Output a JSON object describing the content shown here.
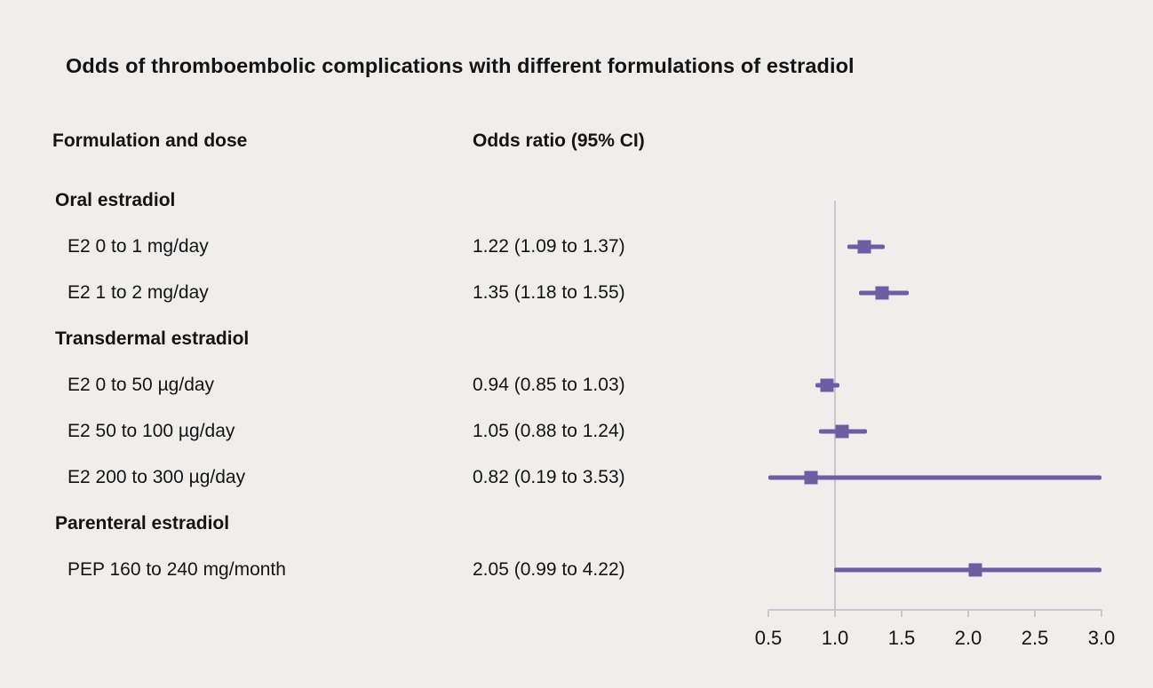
{
  "title": "Odds of thromboembolic complications with different formulations of estradiol",
  "columns": {
    "formulation": "Formulation and dose",
    "odds_ratio": "Odds ratio (95% CI)"
  },
  "chart_data": {
    "type": "forest",
    "title": "Odds of thromboembolic complications with different formulations of estradiol",
    "axis": {
      "min": 0.5,
      "max": 3.0,
      "ticks": [
        0.5,
        1.0,
        1.5,
        2.0,
        2.5,
        3.0
      ],
      "tick_labels": [
        "0.5",
        "1.0",
        "1.5",
        "2.0",
        "2.5",
        "3.0"
      ],
      "reference_line": 1.0
    },
    "colors": {
      "marker": "#6f5da4",
      "axis": "#c8c7cc",
      "background": "#efeeec",
      "text": "#141414"
    },
    "rows": [
      {
        "kind": "group",
        "label": "Oral estradiol"
      },
      {
        "kind": "item",
        "label": "E2 0 to 1 mg/day",
        "estimate_text": "1.22 (1.09 to 1.37)",
        "or": 1.22,
        "lo": 1.09,
        "hi": 1.37
      },
      {
        "kind": "item",
        "label": "E2 1 to 2 mg/day",
        "estimate_text": "1.35 (1.18 to 1.55)",
        "or": 1.35,
        "lo": 1.18,
        "hi": 1.55
      },
      {
        "kind": "group",
        "label": "Transdermal estradiol"
      },
      {
        "kind": "item",
        "label": "E2 0 to 50 µg/day",
        "estimate_text": "0.94 (0.85 to 1.03)",
        "or": 0.94,
        "lo": 0.85,
        "hi": 1.03
      },
      {
        "kind": "item",
        "label": "E2 50 to 100 µg/day",
        "estimate_text": "1.05 (0.88 to 1.24)",
        "or": 1.05,
        "lo": 0.88,
        "hi": 1.24
      },
      {
        "kind": "item",
        "label": "E2 200 to 300 µg/day",
        "estimate_text": "0.82 (0.19 to 3.53)",
        "or": 0.82,
        "lo": 0.19,
        "hi": 3.53
      },
      {
        "kind": "group",
        "label": "Parenteral estradiol"
      },
      {
        "kind": "item",
        "label": "PEP 160 to 240 mg/month",
        "estimate_text": "2.05 (0.99 to 4.22)",
        "or": 2.05,
        "lo": 0.99,
        "hi": 4.22
      }
    ]
  }
}
